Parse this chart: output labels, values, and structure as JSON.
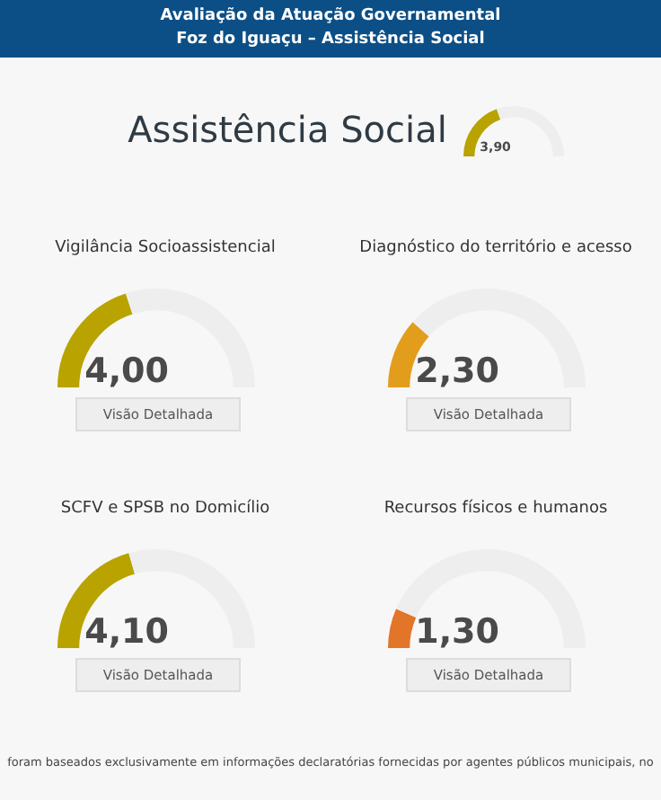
{
  "chart_data": [
    {
      "type": "donut",
      "title": "Assistência Social",
      "categories": [
        null,
        null
      ],
      "values": [
        3.9,
        6.1
      ],
      "value_labels": [
        "3,90",
        null
      ],
      "colors": [
        "#b8a300",
        "#eeeeee"
      ],
      "annotations": [
        "Avaliação da Atuação Governamental",
        "Foz do Iguaçu – Assistência Social",
        "foram baseados exclusivamente em informações declaratórias fornecidas por agentes públicos municipais, no"
      ]
    },
    {
      "type": "donut",
      "title": "Vigilância Socioassistencial",
      "categories": [
        null,
        null
      ],
      "values": [
        4.0,
        6.0
      ],
      "value_labels": [
        "4,00",
        null
      ],
      "colors": [
        "#b8a300",
        "#eeeeee"
      ],
      "annotations": [
        "Visão Detalhada"
      ]
    },
    {
      "type": "donut",
      "title": "Diagnóstico do território e acesso",
      "categories": [
        null,
        null
      ],
      "values": [
        2.3,
        7.7
      ],
      "value_labels": [
        "2,30",
        null
      ],
      "colors": [
        "#e39d1c",
        "#eeeeee"
      ],
      "annotations": [
        "Visão Detalhada"
      ]
    },
    {
      "type": "donut",
      "title": "SCFV e SPSB no Domicílio",
      "categories": [
        null,
        null
      ],
      "values": [
        4.1,
        5.9
      ],
      "value_labels": [
        "4,10",
        null
      ],
      "colors": [
        "#b8a300",
        "#eeeeee"
      ],
      "annotations": [
        "Visão Detalhada"
      ]
    },
    {
      "type": "donut",
      "title": "Recursos físicos e humanos",
      "categories": [
        null,
        null
      ],
      "values": [
        1.3,
        8.7
      ],
      "value_labels": [
        "1,30",
        null
      ],
      "colors": [
        "#e3752a",
        "#eeeeee"
      ],
      "annotations": [
        "Visão Detalhada"
      ]
    }
  ]
}
